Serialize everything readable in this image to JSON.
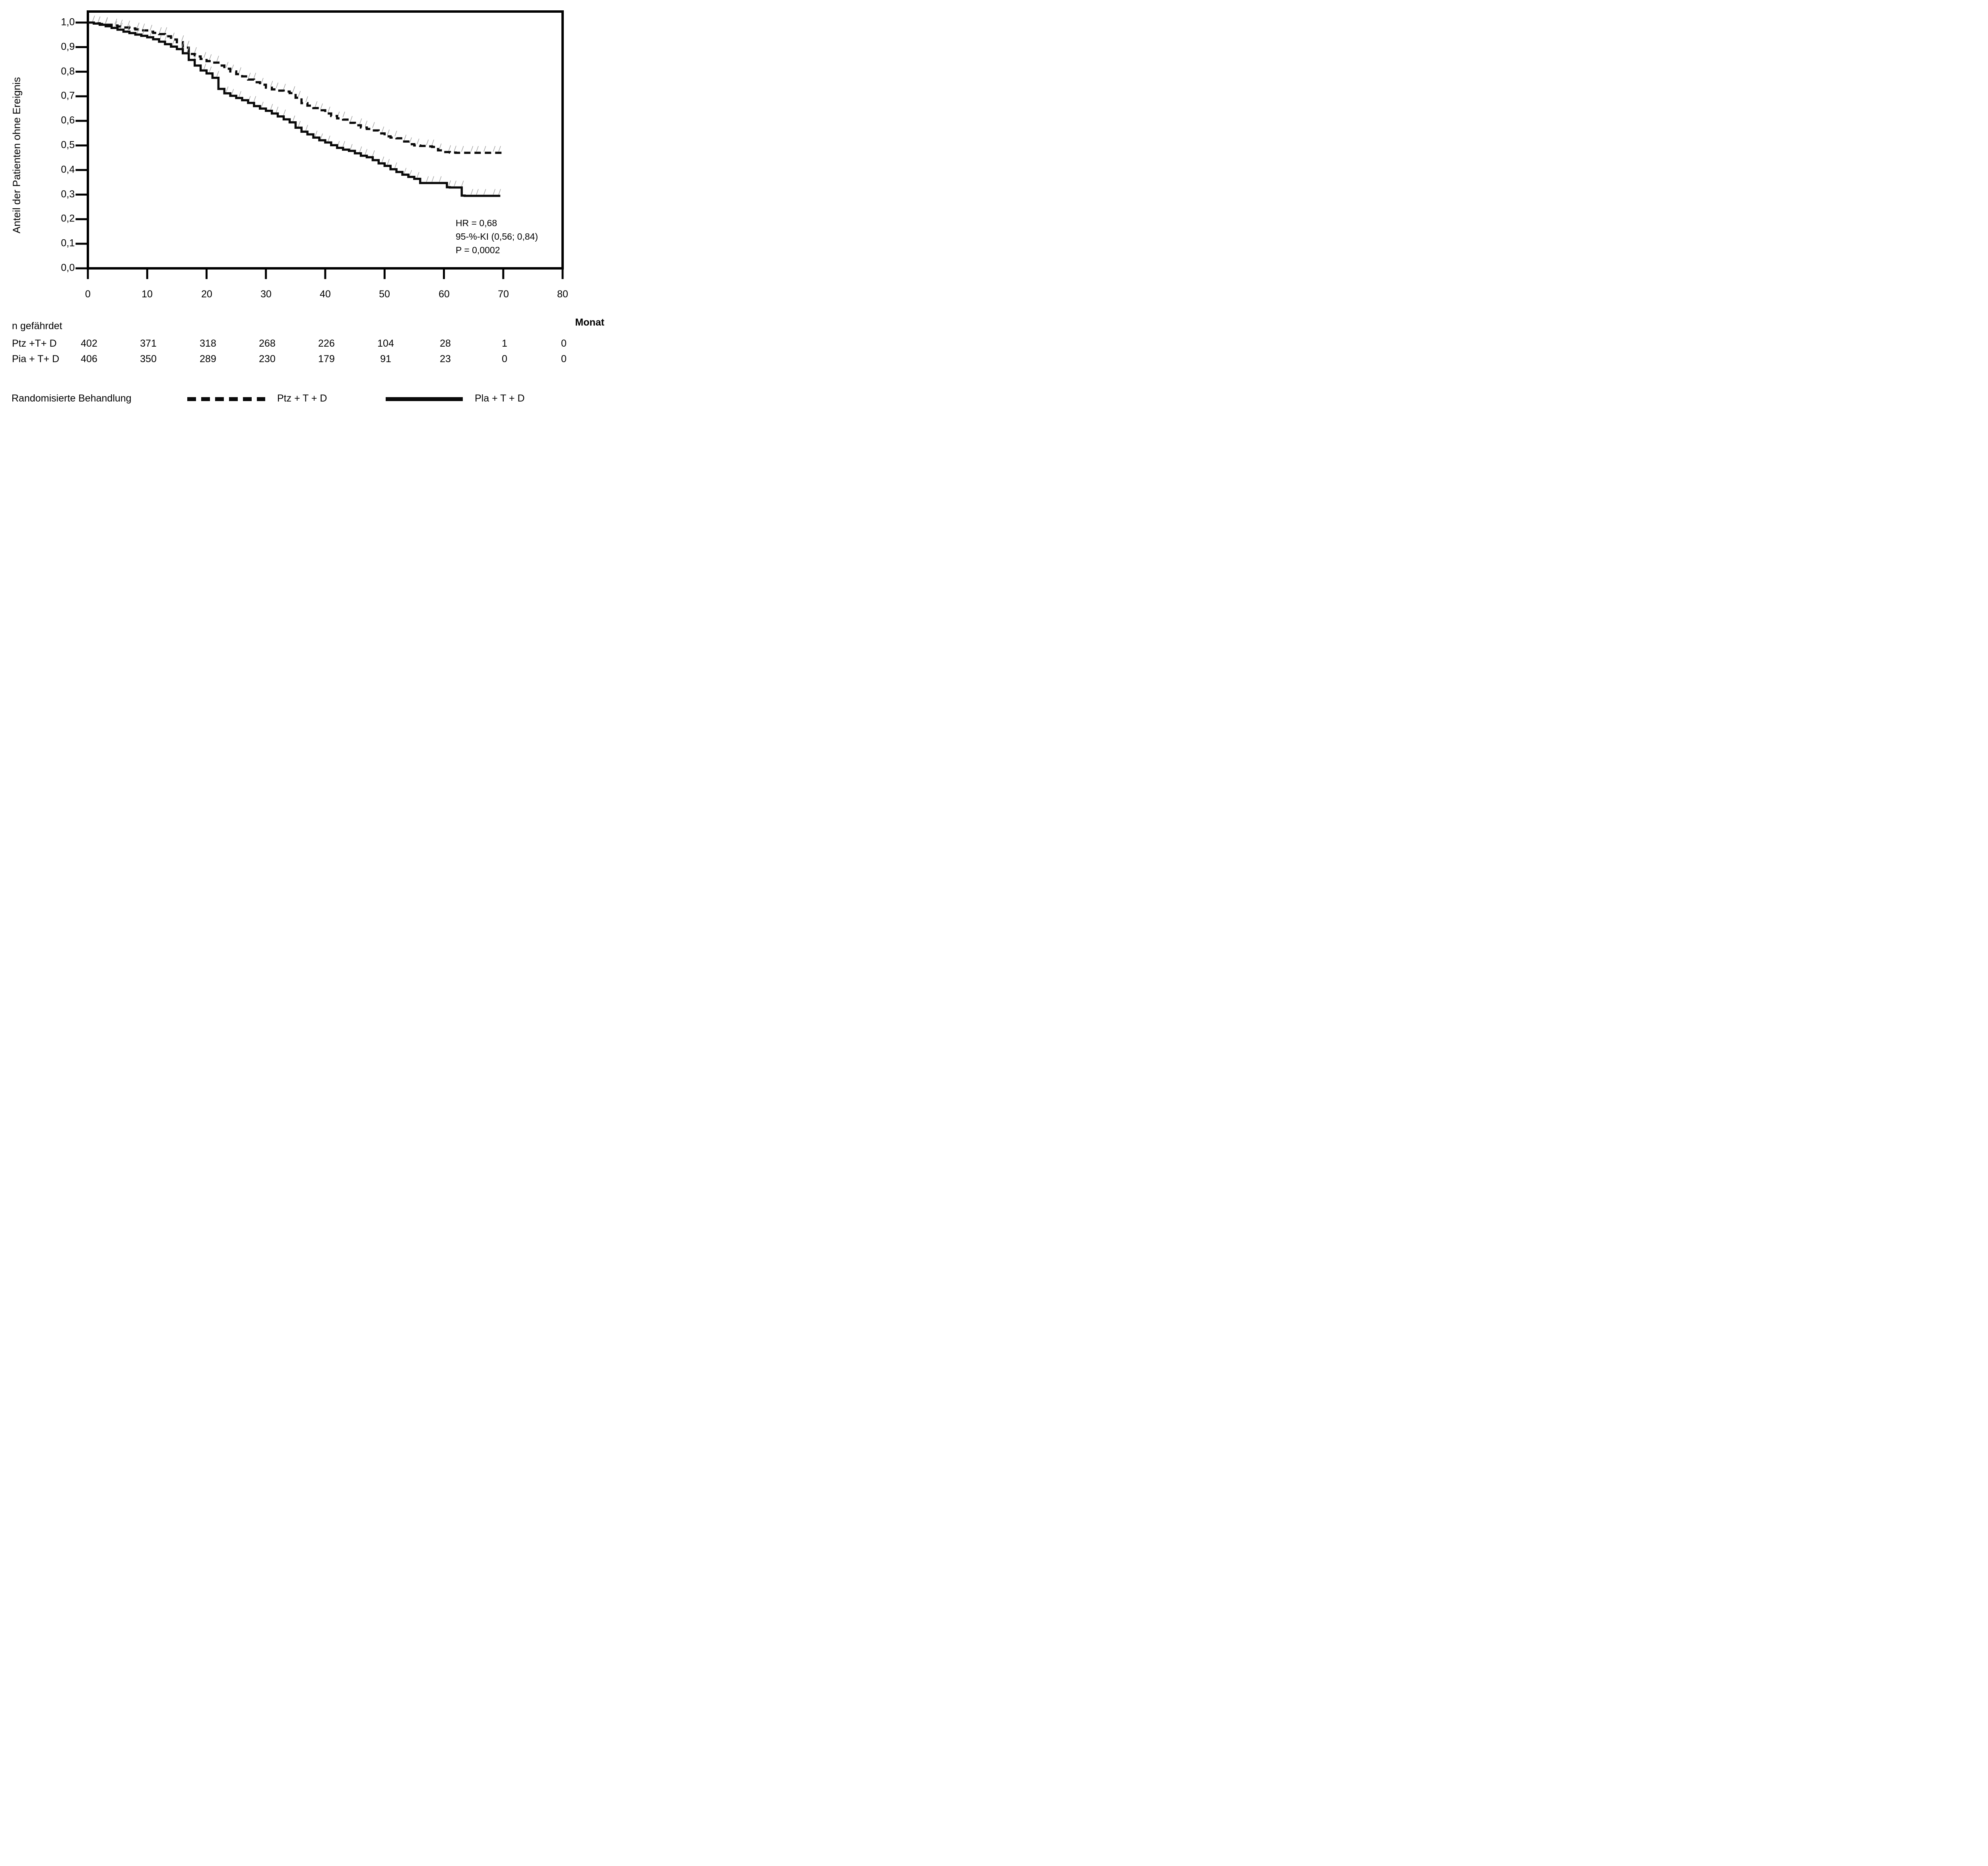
{
  "figure": {
    "ylabel": "Anteil der Patienten ohne Ereignis",
    "xlabel_unit": "Monat",
    "annotation": {
      "hr": "HR = 0,68",
      "ci": "95-%-KI (0,56; 0,84)",
      "p": "P = 0,0002"
    },
    "risk_table": {
      "title": "n gefährdet",
      "rows": [
        {
          "label": "Ptz +T+  D",
          "counts": [
            "402",
            "371",
            "318",
            "268",
            "226",
            "104",
            "28",
            "1",
            "0"
          ]
        },
        {
          "label": "Pia + T+  D",
          "counts": [
            "406",
            "350",
            "289",
            "230",
            "179",
            "91",
            "23",
            "0",
            "0"
          ]
        }
      ]
    },
    "legend": {
      "title": "Randomisierte Behandlung",
      "items": [
        {
          "label": "Ptz + T + D",
          "style": "dashed"
        },
        {
          "label": "Pla + T + D",
          "style": "solid"
        }
      ]
    }
  },
  "chart_data": {
    "type": "line",
    "subtype": "kaplan-meier-step",
    "title": "",
    "xlabel": "Monat",
    "ylabel": "Anteil der Patienten ohne Ereignis",
    "xlim": [
      0,
      80
    ],
    "ylim": [
      0.0,
      1.0
    ],
    "grid": false,
    "frame": "full-box",
    "xticks": [
      "0",
      "10",
      "20",
      "30",
      "40",
      "50",
      "60",
      "70",
      "80"
    ],
    "yticks": [
      "0,0",
      "0,1",
      "0,2",
      "0,3",
      "0,4",
      "0,5",
      "0,6",
      "0,7",
      "0,8",
      "0,9",
      "1,0"
    ],
    "legend_position": "bottom",
    "line_color": "#0a0a0a",
    "censor_marks": {
      "present": true,
      "color": "#a0a0a0"
    },
    "series": [
      {
        "name": "Ptz + T + D",
        "line": "dashed",
        "color": "#0a0a0a",
        "points": [
          [
            0,
            1.0
          ],
          [
            1,
            0.997
          ],
          [
            2,
            0.994
          ],
          [
            3,
            0.991
          ],
          [
            4,
            0.988
          ],
          [
            5,
            0.984
          ],
          [
            6,
            0.98
          ],
          [
            7,
            0.976
          ],
          [
            8,
            0.972
          ],
          [
            9,
            0.968
          ],
          [
            10,
            0.963
          ],
          [
            11,
            0.958
          ],
          [
            12,
            0.953
          ],
          [
            13,
            0.944
          ],
          [
            14,
            0.931
          ],
          [
            15,
            0.92
          ],
          [
            16,
            0.898
          ],
          [
            17,
            0.872
          ],
          [
            18,
            0.862
          ],
          [
            19,
            0.852
          ],
          [
            20,
            0.843
          ],
          [
            21,
            0.837
          ],
          [
            22,
            0.825
          ],
          [
            23,
            0.812
          ],
          [
            24,
            0.801
          ],
          [
            25,
            0.79
          ],
          [
            26,
            0.781
          ],
          [
            27,
            0.768
          ],
          [
            28,
            0.757
          ],
          [
            29,
            0.747
          ],
          [
            30,
            0.735
          ],
          [
            31,
            0.728
          ],
          [
            32,
            0.723
          ],
          [
            33,
            0.719
          ],
          [
            34,
            0.713
          ],
          [
            35,
            0.694
          ],
          [
            36,
            0.672
          ],
          [
            37,
            0.662
          ],
          [
            38,
            0.652
          ],
          [
            39,
            0.643
          ],
          [
            40,
            0.63
          ],
          [
            41,
            0.62
          ],
          [
            42,
            0.61
          ],
          [
            43,
            0.605
          ],
          [
            44,
            0.592
          ],
          [
            45,
            0.582
          ],
          [
            46,
            0.573
          ],
          [
            47,
            0.567
          ],
          [
            48,
            0.561
          ],
          [
            49,
            0.549
          ],
          [
            50,
            0.537
          ],
          [
            51,
            0.532
          ],
          [
            52,
            0.529
          ],
          [
            53,
            0.516
          ],
          [
            54,
            0.505
          ],
          [
            55,
            0.5
          ],
          [
            56,
            0.498
          ],
          [
            57,
            0.496
          ],
          [
            58,
            0.494
          ],
          [
            59,
            0.48
          ],
          [
            60,
            0.473
          ],
          [
            61,
            0.471
          ],
          [
            62,
            0.47
          ],
          [
            70,
            0.47
          ]
        ]
      },
      {
        "name": "Pla + T + D",
        "line": "solid",
        "color": "#0a0a0a",
        "points": [
          [
            0,
            1.0
          ],
          [
            1,
            0.996
          ],
          [
            2,
            0.991
          ],
          [
            3,
            0.985
          ],
          [
            4,
            0.978
          ],
          [
            5,
            0.971
          ],
          [
            6,
            0.963
          ],
          [
            7,
            0.957
          ],
          [
            8,
            0.951
          ],
          [
            9,
            0.946
          ],
          [
            10,
            0.94
          ],
          [
            11,
            0.932
          ],
          [
            12,
            0.922
          ],
          [
            13,
            0.912
          ],
          [
            14,
            0.902
          ],
          [
            15,
            0.892
          ],
          [
            16,
            0.875
          ],
          [
            17,
            0.848
          ],
          [
            18,
            0.825
          ],
          [
            19,
            0.805
          ],
          [
            20,
            0.793
          ],
          [
            21,
            0.775
          ],
          [
            22,
            0.73
          ],
          [
            23,
            0.712
          ],
          [
            24,
            0.702
          ],
          [
            25,
            0.693
          ],
          [
            26,
            0.684
          ],
          [
            27,
            0.673
          ],
          [
            28,
            0.66
          ],
          [
            29,
            0.65
          ],
          [
            30,
            0.641
          ],
          [
            31,
            0.63
          ],
          [
            32,
            0.618
          ],
          [
            33,
            0.606
          ],
          [
            34,
            0.594
          ],
          [
            35,
            0.572
          ],
          [
            36,
            0.556
          ],
          [
            37,
            0.545
          ],
          [
            38,
            0.532
          ],
          [
            39,
            0.521
          ],
          [
            40,
            0.512
          ],
          [
            41,
            0.501
          ],
          [
            42,
            0.49
          ],
          [
            43,
            0.483
          ],
          [
            44,
            0.478
          ],
          [
            45,
            0.468
          ],
          [
            46,
            0.458
          ],
          [
            47,
            0.452
          ],
          [
            48,
            0.44
          ],
          [
            49,
            0.427
          ],
          [
            50,
            0.417
          ],
          [
            51,
            0.403
          ],
          [
            52,
            0.392
          ],
          [
            53,
            0.381
          ],
          [
            54,
            0.372
          ],
          [
            55,
            0.364
          ],
          [
            56,
            0.347
          ],
          [
            60.5,
            0.33
          ],
          [
            61,
            0.329
          ],
          [
            63,
            0.296
          ],
          [
            63.5,
            0.295
          ],
          [
            69.5,
            0.295
          ]
        ]
      }
    ]
  }
}
